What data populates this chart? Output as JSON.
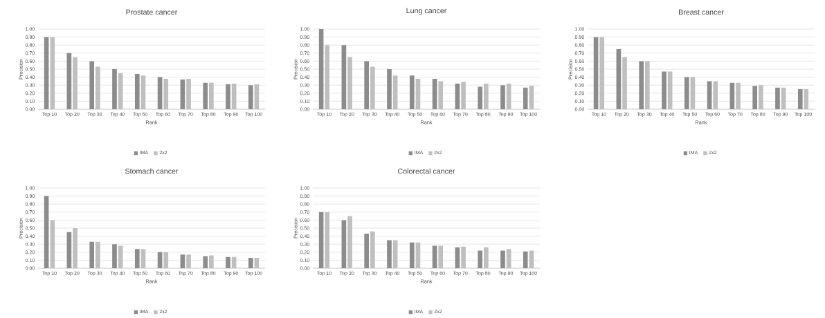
{
  "chart_data": [
    {
      "type": "bar",
      "title": "Prostate cancer",
      "xlabel": "Rank",
      "ylabel": "Precision",
      "categories": [
        "Top 10",
        "Top 20",
        "Top 30",
        "Top 40",
        "Top 50",
        "Top 60",
        "Top 70",
        "Top 80",
        "Top 90",
        "Top 100"
      ],
      "series": [
        {
          "name": "IMA",
          "color": "#8c8c8c",
          "values": [
            0.9,
            0.7,
            0.6,
            0.5,
            0.44,
            0.4,
            0.37,
            0.33,
            0.31,
            0.3
          ]
        },
        {
          "name": "2x2",
          "color": "#bfbfbf",
          "values": [
            0.9,
            0.65,
            0.53,
            0.45,
            0.42,
            0.38,
            0.38,
            0.33,
            0.32,
            0.31
          ]
        }
      ],
      "ylim": [
        0,
        1
      ],
      "yticks": [
        {
          "value": 0,
          "label": "0.00"
        },
        {
          "value": 0.1,
          "label": "0.10"
        },
        {
          "value": 0.2,
          "label": "0.20"
        },
        {
          "value": 0.3,
          "label": "0.30"
        },
        {
          "value": 0.4,
          "label": "0.40"
        },
        {
          "value": 0.5,
          "label": "0.50"
        },
        {
          "value": 0.6,
          "label": "0.60"
        },
        {
          "value": 0.7,
          "label": "0.70"
        },
        {
          "value": 0.8,
          "label": "0.80"
        },
        {
          "value": 0.9,
          "label": "0.90"
        },
        {
          "value": 1,
          "label": "1.00"
        }
      ],
      "grid": "y",
      "legend": "bottom"
    },
    {
      "type": "bar",
      "title": "Lung cancer",
      "xlabel": "Rank",
      "ylabel": "Precision",
      "categories": [
        "Top 10",
        "Top 20",
        "Top 30",
        "Top 40",
        "Top 50",
        "Top 60",
        "Top 70",
        "Top 80",
        "Top 90",
        "Top 100"
      ],
      "series": [
        {
          "name": "IMA",
          "color": "#8c8c8c",
          "values": [
            1.0,
            0.8,
            0.6,
            0.5,
            0.42,
            0.38,
            0.32,
            0.28,
            0.3,
            0.27
          ]
        },
        {
          "name": "2x2",
          "color": "#bfbfbf",
          "values": [
            0.8,
            0.65,
            0.53,
            0.42,
            0.38,
            0.35,
            0.34,
            0.32,
            0.32,
            0.29
          ]
        }
      ],
      "ylim": [
        0,
        1
      ],
      "yticks": [
        {
          "value": 0,
          "label": "0.00"
        },
        {
          "value": 0.1,
          "label": "0.10"
        },
        {
          "value": 0.2,
          "label": "0.20"
        },
        {
          "value": 0.3,
          "label": "0.30"
        },
        {
          "value": 0.4,
          "label": "0.40"
        },
        {
          "value": 0.5,
          "label": "0.50"
        },
        {
          "value": 0.6,
          "label": "0.60"
        },
        {
          "value": 0.7,
          "label": "0.70"
        },
        {
          "value": 0.8,
          "label": "0.80"
        },
        {
          "value": 0.9,
          "label": "0.90"
        },
        {
          "value": 1,
          "label": "1.00"
        }
      ],
      "grid": "y",
      "legend": "bottom"
    },
    {
      "type": "bar",
      "title": "Breast cancer",
      "xlabel": "Rank",
      "ylabel": "Precision",
      "categories": [
        "Top 10",
        "Top 20",
        "Top 30",
        "Top 40",
        "Top 50",
        "Top 60",
        "Top 70",
        "Top 80",
        "Top 90",
        "Top 100"
      ],
      "series": [
        {
          "name": "IMA",
          "color": "#8c8c8c",
          "values": [
            0.9,
            0.75,
            0.6,
            0.47,
            0.4,
            0.35,
            0.33,
            0.29,
            0.27,
            0.25
          ]
        },
        {
          "name": "2x2",
          "color": "#bfbfbf",
          "values": [
            0.9,
            0.65,
            0.6,
            0.47,
            0.4,
            0.35,
            0.33,
            0.3,
            0.27,
            0.25
          ]
        }
      ],
      "ylim": [
        0,
        1
      ],
      "yticks": [
        {
          "value": 0,
          "label": "0.00"
        },
        {
          "value": 0.1,
          "label": "0.10"
        },
        {
          "value": 0.2,
          "label": "0.20"
        },
        {
          "value": 0.3,
          "label": "0.30"
        },
        {
          "value": 0.4,
          "label": "0.40"
        },
        {
          "value": 0.5,
          "label": "0.50"
        },
        {
          "value": 0.6,
          "label": "0.60"
        },
        {
          "value": 0.7,
          "label": "0.70"
        },
        {
          "value": 0.8,
          "label": "0.80"
        },
        {
          "value": 0.9,
          "label": "0.90"
        },
        {
          "value": 1,
          "label": "1.00"
        }
      ],
      "grid": "y",
      "legend": "bottom"
    },
    {
      "type": "bar",
      "title": "Stomach cancer",
      "xlabel": "Rank",
      "ylabel": "Precision",
      "categories": [
        "Top 10",
        "Top 20",
        "Top 30",
        "Top 40",
        "Top 50",
        "Top 60",
        "Top 70",
        "Top 80",
        "Top 90",
        "Top 100"
      ],
      "series": [
        {
          "name": "IMA",
          "color": "#8c8c8c",
          "values": [
            0.9,
            0.45,
            0.33,
            0.3,
            0.24,
            0.2,
            0.17,
            0.15,
            0.14,
            0.13
          ]
        },
        {
          "name": "2x2",
          "color": "#bfbfbf",
          "values": [
            0.6,
            0.5,
            0.33,
            0.28,
            0.24,
            0.2,
            0.17,
            0.16,
            0.14,
            0.13
          ]
        }
      ],
      "ylim": [
        0,
        1
      ],
      "yticks": [
        {
          "value": 0,
          "label": "0.00"
        },
        {
          "value": 0.1,
          "label": "0.10"
        },
        {
          "value": 0.2,
          "label": "0.20"
        },
        {
          "value": 0.3,
          "label": "0.30"
        },
        {
          "value": 0.4,
          "label": "0.40"
        },
        {
          "value": 0.5,
          "label": "0.50"
        },
        {
          "value": 0.6,
          "label": "0.60"
        },
        {
          "value": 0.7,
          "label": "0.70"
        },
        {
          "value": 0.8,
          "label": "0.80"
        },
        {
          "value": 0.9,
          "label": "0.90"
        },
        {
          "value": 1,
          "label": "1.00"
        }
      ],
      "grid": "y",
      "legend": "bottom"
    },
    {
      "type": "bar",
      "title": "Colorectal cancer",
      "xlabel": "Rank",
      "ylabel": "Precision",
      "categories": [
        "Top 10",
        "Top 20",
        "Top 30",
        "Top 40",
        "Top 50",
        "Top 60",
        "Top 70",
        "Top 80",
        "Top 90",
        "Top 100"
      ],
      "series": [
        {
          "name": "IMA",
          "color": "#8c8c8c",
          "values": [
            0.7,
            0.6,
            0.43,
            0.35,
            0.32,
            0.28,
            0.26,
            0.22,
            0.22,
            0.21
          ]
        },
        {
          "name": "2x2",
          "color": "#bfbfbf",
          "values": [
            0.7,
            0.65,
            0.46,
            0.35,
            0.32,
            0.28,
            0.27,
            0.26,
            0.24,
            0.22
          ]
        }
      ],
      "ylim": [
        0,
        1
      ],
      "yticks": [
        {
          "value": 0,
          "label": "0.00"
        },
        {
          "value": 0.1,
          "label": "0.10"
        },
        {
          "value": 0.2,
          "label": "0.20"
        },
        {
          "value": 0.3,
          "label": "0.30"
        },
        {
          "value": 0.4,
          "label": "0.40"
        },
        {
          "value": 0.5,
          "label": "0.50"
        },
        {
          "value": 0.6,
          "label": "0.60"
        },
        {
          "value": 0.7,
          "label": "0.70"
        },
        {
          "value": 0.8,
          "label": "0.80"
        },
        {
          "value": 0.9,
          "label": "0.90"
        },
        {
          "value": 1,
          "label": "1.00"
        }
      ],
      "grid": "y",
      "legend": "bottom"
    }
  ]
}
